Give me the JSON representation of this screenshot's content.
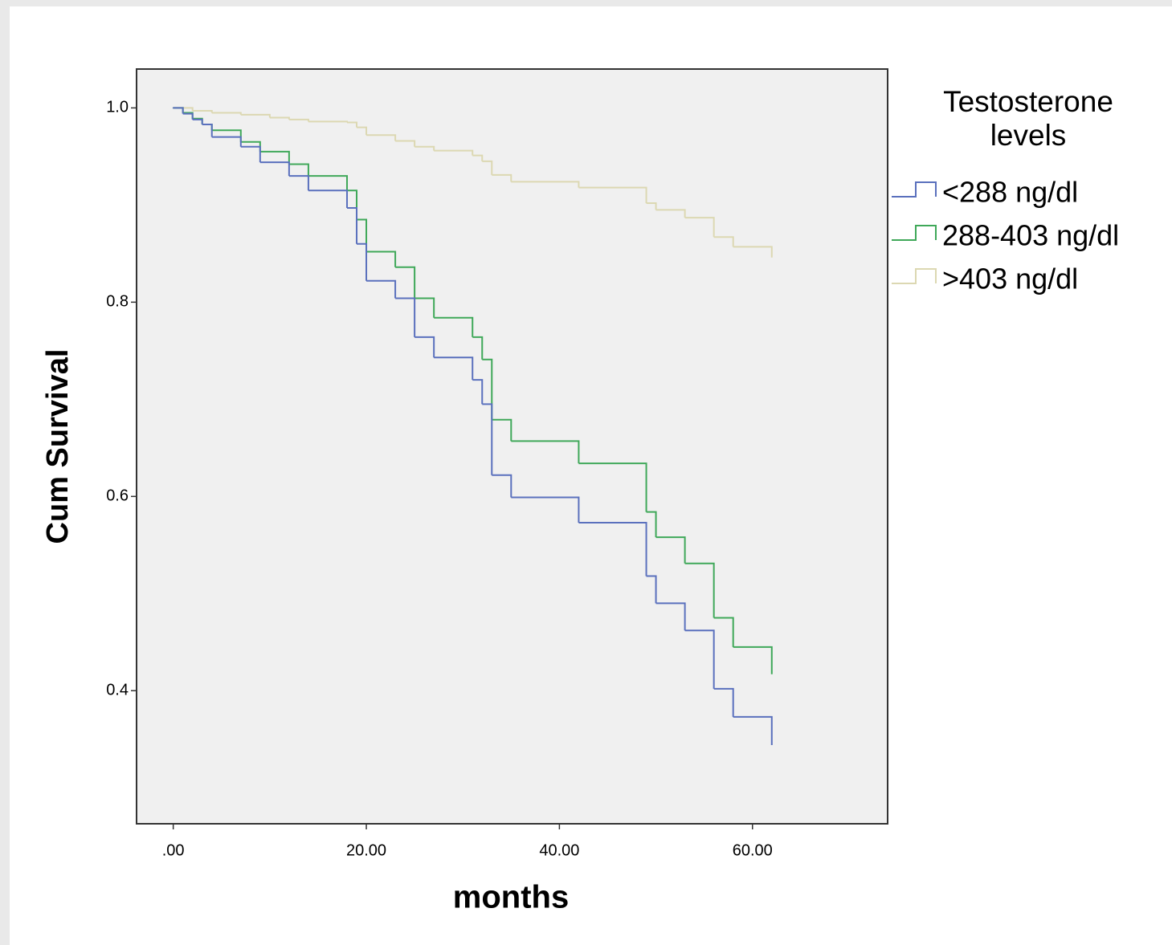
{
  "chart_data": {
    "type": "step",
    "x_label": "months",
    "y_label": "Cum Survival",
    "legend_title": "Testosterone levels",
    "xlim": [
      -3.8,
      74
    ],
    "ylim": [
      0.263,
      1.04
    ],
    "xticks": [
      {
        "value": 0,
        "label": ".00"
      },
      {
        "value": 20,
        "label": "20.00"
      },
      {
        "value": 40,
        "label": "40.00"
      },
      {
        "value": 60,
        "label": "60.00"
      }
    ],
    "yticks": [
      {
        "value": 0.4,
        "label": "0.4"
      },
      {
        "value": 0.6,
        "label": "0.6"
      },
      {
        "value": 0.8,
        "label": "0.8"
      },
      {
        "value": 1.0,
        "label": "1.0"
      }
    ],
    "series": [
      {
        "name": "<288 ng/dl",
        "color": "#5a70bd",
        "x": [
          0,
          1,
          2,
          3,
          4,
          7,
          9,
          12,
          14,
          18,
          19,
          20,
          23,
          25,
          27,
          31,
          32,
          33,
          35,
          42,
          49,
          50,
          53,
          56,
          58,
          62
        ],
        "values": [
          1.0,
          0.994,
          0.988,
          0.983,
          0.97,
          0.96,
          0.944,
          0.93,
          0.915,
          0.897,
          0.86,
          0.822,
          0.804,
          0.764,
          0.743,
          0.72,
          0.695,
          0.622,
          0.599,
          0.573,
          0.518,
          0.49,
          0.462,
          0.402,
          0.373,
          0.344
        ]
      },
      {
        "name": "288-403 ng/dl",
        "color": "#3fa859",
        "x": [
          0,
          1,
          2,
          3,
          4,
          7,
          9,
          12,
          14,
          18,
          19,
          20,
          23,
          25,
          27,
          31,
          32,
          33,
          35,
          42,
          49,
          50,
          53,
          56,
          58,
          62
        ],
        "values": [
          1.0,
          0.995,
          0.989,
          0.983,
          0.977,
          0.965,
          0.955,
          0.942,
          0.93,
          0.915,
          0.885,
          0.852,
          0.836,
          0.804,
          0.784,
          0.764,
          0.741,
          0.679,
          0.657,
          0.634,
          0.584,
          0.558,
          0.531,
          0.475,
          0.445,
          0.417
        ]
      },
      {
        "name": ">403 ng/dl",
        "color": "#dcd8b2",
        "x": [
          0,
          2,
          4,
          7,
          10,
          12,
          14,
          18,
          19,
          20,
          23,
          25,
          27,
          31,
          32,
          33,
          35,
          42,
          49,
          50,
          53,
          56,
          58,
          62
        ],
        "values": [
          1.0,
          0.997,
          0.995,
          0.993,
          0.99,
          0.988,
          0.986,
          0.985,
          0.98,
          0.972,
          0.966,
          0.96,
          0.956,
          0.951,
          0.945,
          0.931,
          0.924,
          0.918,
          0.902,
          0.895,
          0.887,
          0.867,
          0.857,
          0.846
        ]
      }
    ]
  }
}
